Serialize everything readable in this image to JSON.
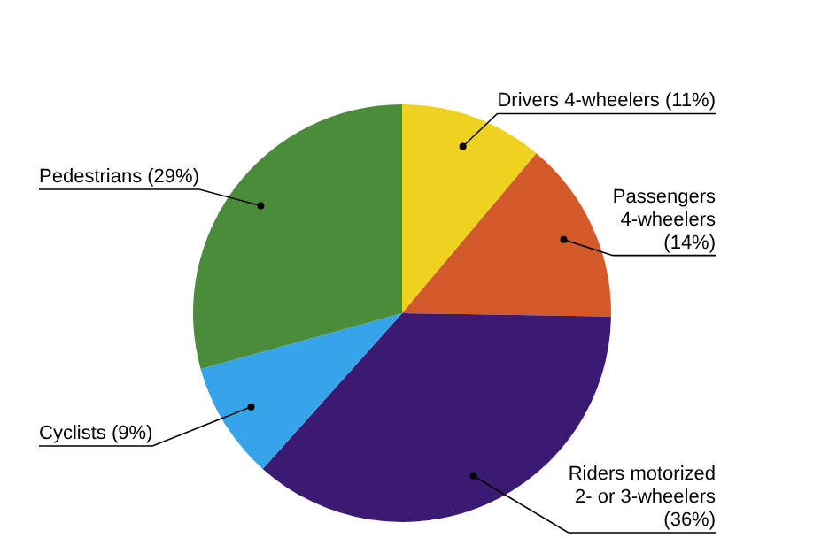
{
  "chart_data": {
    "type": "pie",
    "categories": [
      "Drivers 4-wheelers (11%)",
      "Passengers 4-wheelers (14%)",
      "Riders motorized 2- or 3-wheelers (36%)",
      "Cyclists (9%)",
      "Pedestrians (29%)"
    ],
    "values": [
      11,
      14,
      36,
      9,
      29
    ],
    "colors": [
      "#eed21f",
      "#d2592a",
      "#3b1a73",
      "#35a4e8",
      "#4a8c3a"
    ],
    "legend": false
  }
}
